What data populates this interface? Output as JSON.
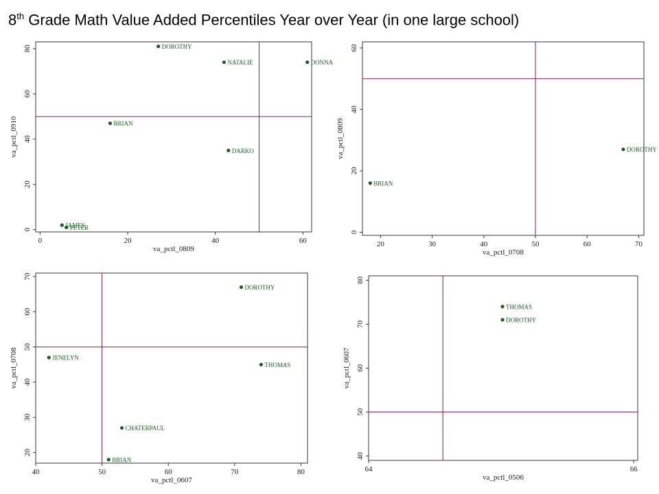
{
  "title": {
    "prefix": "8",
    "superscript": "th",
    "rest": " Grade Math Value Added Percentiles Year over Year (in one large school)"
  },
  "colors": {
    "point": "#1b5e20",
    "label": "#1b5e20",
    "refline": "#8b1a4a",
    "frame": "#333333"
  },
  "chart_data": [
    {
      "type": "scatter",
      "title": "",
      "xlabel": "va_pctl_0809",
      "ylabel": "va_pctl_0910",
      "xlim": [
        -1,
        62
      ],
      "ylim": [
        -1,
        83
      ],
      "xticks": [
        0,
        20,
        40,
        60
      ],
      "yticks": [
        0,
        20,
        40,
        60,
        80
      ],
      "reference_lines": {
        "x": 50,
        "y": 50
      },
      "points": [
        {
          "label": "DOROTHY",
          "x": 27,
          "y": 81
        },
        {
          "label": "NATALIE",
          "x": 42,
          "y": 74
        },
        {
          "label": "DONNA",
          "x": 61,
          "y": 74
        },
        {
          "label": "BRIAN",
          "x": 16,
          "y": 47
        },
        {
          "label": "DARKO",
          "x": 43,
          "y": 35
        },
        {
          "label": "JAMES",
          "x": 5,
          "y": 2
        },
        {
          "label": "PETER",
          "x": 6,
          "y": 1
        }
      ]
    },
    {
      "type": "scatter",
      "title": "",
      "xlabel": "va_pctl_0708",
      "ylabel": "va_pctl_0809",
      "xlim": [
        16.5,
        71
      ],
      "ylim": [
        -1,
        62
      ],
      "xticks": [
        20,
        30,
        40,
        50,
        60,
        70
      ],
      "yticks": [
        0,
        20,
        40,
        60
      ],
      "reference_lines": {
        "x": 50,
        "y": 50
      },
      "points": [
        {
          "label": "DOROTHY",
          "x": 67,
          "y": 27
        },
        {
          "label": "BRIAN",
          "x": 18,
          "y": 16
        }
      ]
    },
    {
      "type": "scatter",
      "title": "",
      "xlabel": "va_pctl_0607",
      "ylabel": "va_pctl_0708",
      "xlim": [
        40,
        81
      ],
      "ylim": [
        17,
        71
      ],
      "xticks": [
        40,
        50,
        60,
        70,
        80
      ],
      "yticks": [
        20,
        30,
        40,
        50,
        60,
        70
      ],
      "reference_lines": {
        "x": 50,
        "y": 50
      },
      "points": [
        {
          "label": "DOROTHY",
          "x": 71,
          "y": 67
        },
        {
          "label": "JENELYN",
          "x": 42,
          "y": 47
        },
        {
          "label": "THOMAS",
          "x": 74,
          "y": 45
        },
        {
          "label": "CHATERPAUL",
          "x": 53,
          "y": 27
        },
        {
          "label": "BRIAN",
          "x": 51,
          "y": 18
        }
      ]
    },
    {
      "type": "scatter",
      "title": "",
      "xlabel": "va_pctl_0506",
      "ylabel": "va_pctl_0607",
      "xlim": [
        64,
        66.03
      ],
      "ylim": [
        39,
        81
      ],
      "xticks": [
        64,
        66
      ],
      "yticks": [
        40,
        50,
        60,
        70,
        80
      ],
      "reference_lines": {
        "x": 64.56,
        "y": 50
      },
      "points": [
        {
          "label": "THOMAS",
          "x": 65.01,
          "y": 74
        },
        {
          "label": "DOROTHY",
          "x": 65.01,
          "y": 71
        }
      ]
    }
  ]
}
